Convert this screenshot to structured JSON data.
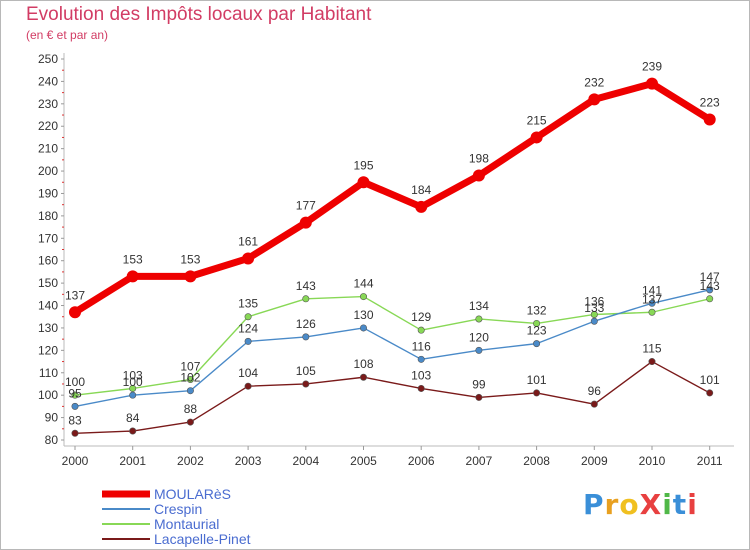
{
  "title": "Evolution des Impôts locaux par Habitant",
  "subtitle": "(en € et par an)",
  "logo": {
    "text": "ProXiti",
    "colors": [
      "#3a8fd8",
      "#e8a020",
      "#f0c020",
      "#e84040",
      "#50b848",
      "#3a8fd8",
      "#e84040"
    ]
  },
  "chart_data": {
    "type": "line",
    "title": "Evolution des Impôts locaux par Habitant",
    "subtitle": "(en € et par an)",
    "xlabel": "",
    "ylabel": "",
    "x": [
      "2000",
      "2001",
      "2002",
      "2003",
      "2004",
      "2005",
      "2006",
      "2007",
      "2008",
      "2009",
      "2010",
      "2011"
    ],
    "y_ticks": [
      "80",
      "90",
      "100",
      "110",
      "120",
      "130",
      "140",
      "150",
      "160",
      "170",
      "180",
      "190",
      "200",
      "210",
      "220",
      "230",
      "240",
      "250"
    ],
    "ylim": [
      80,
      250
    ],
    "grid": false,
    "legend": "bottom-left",
    "series": [
      {
        "name": "Lacapelle-Pinet",
        "color": "#7a1a1a",
        "values": [
          83,
          84,
          88,
          104,
          105,
          108,
          103,
          99,
          101,
          96,
          115,
          101
        ],
        "labels": [
          "83",
          "84",
          "88",
          "104",
          "105",
          "108",
          "103",
          "99",
          "101",
          "96",
          "115",
          "101"
        ]
      },
      {
        "name": "Montaurial",
        "color": "#88d856",
        "values": [
          100,
          103,
          107,
          135,
          143,
          144,
          129,
          134,
          132,
          136,
          137,
          143
        ],
        "labels": [
          "100",
          "103",
          "107",
          "135",
          "143",
          "144",
          "129",
          "134",
          "132",
          "136",
          "137",
          "143"
        ]
      },
      {
        "name": "Crespin",
        "color": "#4a8ac8",
        "values": [
          95,
          100,
          102,
          124,
          126,
          130,
          116,
          120,
          123,
          133,
          141,
          147
        ],
        "labels": [
          "95",
          "100",
          "102",
          "124",
          "126",
          "130",
          "116",
          "120",
          "123",
          "133",
          "141",
          "147"
        ]
      },
      {
        "name": "MOULARèS",
        "color": "#ee0000",
        "values": [
          137,
          153,
          153,
          161,
          177,
          195,
          184,
          198,
          215,
          232,
          239,
          223
        ],
        "labels": [
          "137",
          "153",
          "153",
          "161",
          "177",
          "195",
          "184",
          "198",
          "215",
          "232",
          "239",
          "223"
        ]
      }
    ],
    "legend_order": [
      "MOULARèS",
      "Crespin",
      "Montaurial",
      "Lacapelle-Pinet"
    ]
  }
}
